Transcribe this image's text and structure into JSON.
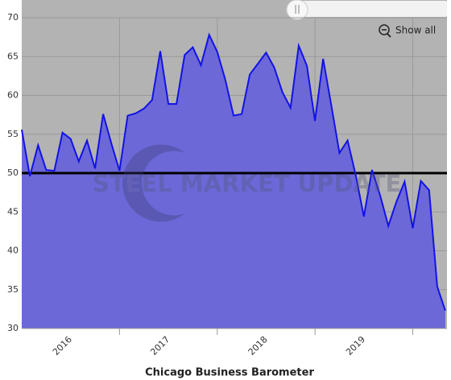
{
  "chart_data": {
    "type": "area",
    "title": "Chicago Business Barometer",
    "watermark": "STEEL MARKET UPDATE",
    "button": "Show all",
    "x": [
      2016,
      2016.083,
      2016.167,
      2016.25,
      2016.333,
      2016.417,
      2016.5,
      2016.583,
      2016.667,
      2016.75,
      2016.833,
      2016.917,
      2017,
      2017.083,
      2017.167,
      2017.25,
      2017.333,
      2017.417,
      2017.5,
      2017.583,
      2017.667,
      2017.75,
      2017.833,
      2017.917,
      2018,
      2018.083,
      2018.167,
      2018.25,
      2018.333,
      2018.417,
      2018.5,
      2018.583,
      2018.667,
      2018.75,
      2018.833,
      2018.917,
      2019,
      2019.083,
      2019.167,
      2019.25,
      2019.333,
      2019.417,
      2019.5,
      2019.583,
      2019.667,
      2019.75,
      2019.833,
      2019.917,
      2020,
      2020.083,
      2020.167,
      2020.25,
      2020.333
    ],
    "values": [
      55.6,
      49.6,
      53.6,
      50.4,
      50.3,
      55.2,
      54.4,
      51.5,
      54.2,
      50.6,
      57.6,
      53.8,
      50.3,
      57.4,
      57.7,
      58.3,
      59.4,
      65.7,
      58.9,
      58.9,
      65.2,
      66.2,
      63.9,
      67.8,
      65.6,
      62.0,
      57.4,
      57.6,
      62.7,
      64.1,
      65.5,
      63.6,
      60.4,
      58.4,
      66.4,
      63.8,
      56.7,
      64.7,
      58.7,
      52.6,
      54.2,
      49.7,
      44.4,
      50.4,
      47.1,
      43.2,
      46.3,
      48.9,
      42.9,
      49.0,
      47.8,
      35.4,
      32.3
    ],
    "line_color": "#1212e6",
    "fill_color": "#6c68d8",
    "reference_line": 50,
    "xlim": [
      2016,
      2020.35
    ],
    "xticks": [
      {
        "value": 2016.5,
        "label": "2016"
      },
      {
        "value": 2017.5,
        "label": "2017"
      },
      {
        "value": 2018.5,
        "label": "2018"
      },
      {
        "value": 2019.5,
        "label": "2019"
      }
    ],
    "ylim": [
      30,
      70
    ],
    "yticks": [
      30,
      35,
      40,
      45,
      50,
      55,
      60,
      65,
      70
    ],
    "grid": true
  }
}
